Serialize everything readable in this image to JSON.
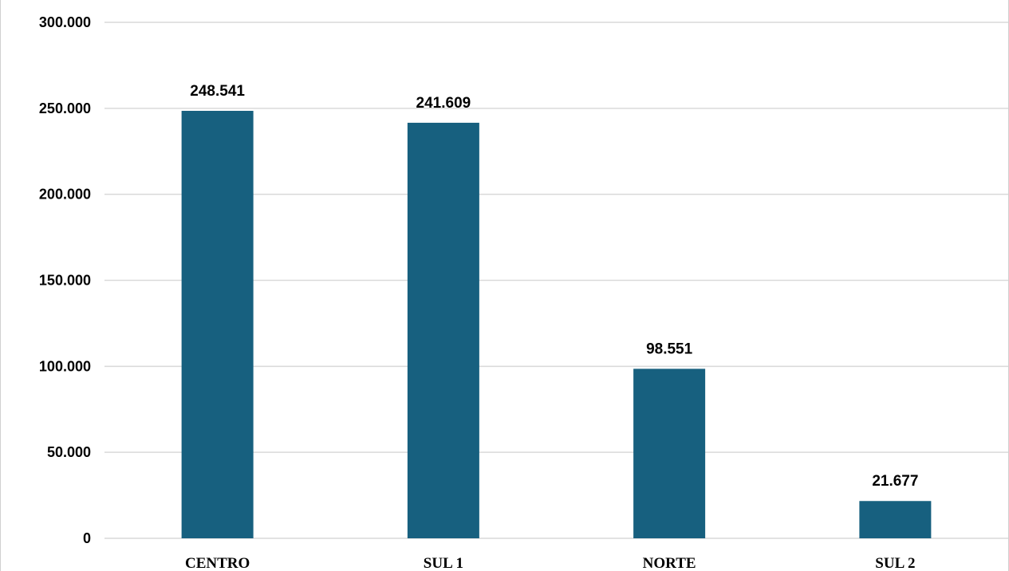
{
  "chart_data": {
    "type": "bar",
    "title": "",
    "xlabel": "",
    "ylabel": "",
    "categories": [
      "CENTRO",
      "SUL 1",
      "NORTE",
      "SUL 2"
    ],
    "values": [
      248541,
      241609,
      98551,
      21677
    ],
    "value_labels": [
      "248.541",
      "241.609",
      "98.551",
      "21.677"
    ],
    "ylim": [
      0,
      300000
    ],
    "yticks": [
      0,
      50000,
      100000,
      150000,
      200000,
      250000,
      300000
    ],
    "ytick_labels": [
      "0",
      "50.000",
      "100.000",
      "150.000",
      "200.000",
      "250.000",
      "300.000"
    ],
    "grid": true,
    "legend": "none",
    "bar_color": "#17607f",
    "grid_color": "#d9d9d9"
  }
}
